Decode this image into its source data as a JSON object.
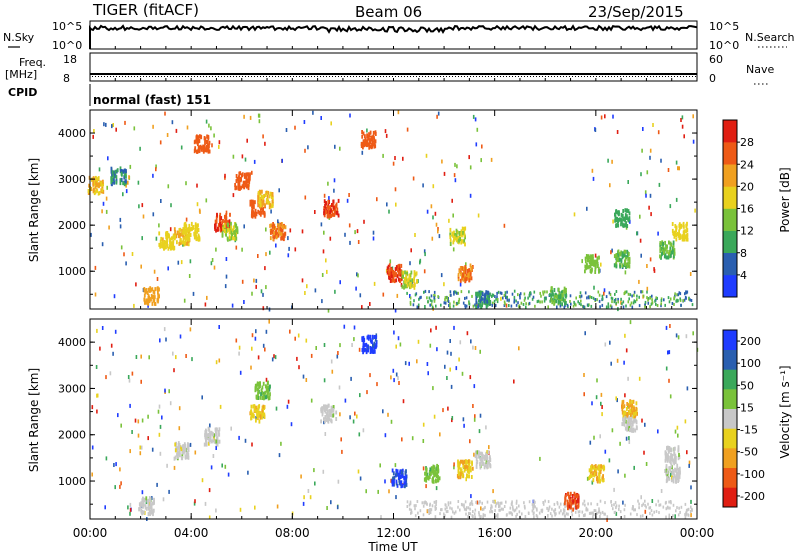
{
  "header": {
    "radar": "TIGER (fitACF)",
    "beam": "Beam 06",
    "date": "23/Sep/2015"
  },
  "top_panels": {
    "nsky_label": "N.Sky",
    "nsearch_label": "N.Search",
    "nsky_ticks": [
      "10^5",
      "10^0"
    ],
    "nsearch_ticks": [
      "10^5",
      "10^0"
    ],
    "freq_label": "Freq.",
    "freq_unit": "[MHz]",
    "freq_ticks": [
      "18",
      "8"
    ],
    "nave_label": "Nave",
    "nave_ticks": [
      "60",
      "0"
    ],
    "cpid_label": "CPID",
    "cpid_text": "normal (fast) 151"
  },
  "chart_data": [
    {
      "type": "heatmap",
      "name": "power",
      "ylabel": "Slant Range [km]",
      "ylim": [
        180,
        4500
      ],
      "yticks": [
        "4000",
        "3000",
        "2000",
        "1000"
      ],
      "ytick_values": [
        4000,
        3000,
        2000,
        1000
      ],
      "colorbar_label": "Power [dB]",
      "colorbar_ticks": [
        "28",
        "24",
        "20",
        "16",
        "12",
        "8",
        "4"
      ],
      "colorbar_range": [
        0,
        32
      ],
      "colors": [
        "#1f3cff",
        "#2a5fb0",
        "#3aa85a",
        "#7ac23a",
        "#e8d11e",
        "#f0a020",
        "#ee5a16",
        "#e01e12"
      ],
      "patches": [
        {
          "t": 0.2,
          "r": 2900,
          "v": 20
        },
        {
          "t": 1.1,
          "r": 3100,
          "v": 8
        },
        {
          "t": 2.4,
          "r": 500,
          "v": 22
        },
        {
          "t": 3.0,
          "r": 1700,
          "v": 18
        },
        {
          "t": 3.6,
          "r": 1800,
          "v": 20
        },
        {
          "t": 4.0,
          "r": 1900,
          "v": 18
        },
        {
          "t": 4.4,
          "r": 3800,
          "v": 26
        },
        {
          "t": 5.2,
          "r": 2100,
          "v": 28
        },
        {
          "t": 5.5,
          "r": 1900,
          "v": 16
        },
        {
          "t": 6.0,
          "r": 3000,
          "v": 26
        },
        {
          "t": 6.6,
          "r": 2400,
          "v": 26
        },
        {
          "t": 6.9,
          "r": 2600,
          "v": 20
        },
        {
          "t": 7.4,
          "r": 1900,
          "v": 24
        },
        {
          "t": 9.5,
          "r": 2400,
          "v": 28
        },
        {
          "t": 11.0,
          "r": 3900,
          "v": 26
        },
        {
          "t": 12.0,
          "r": 1000,
          "v": 28
        },
        {
          "t": 12.6,
          "r": 850,
          "v": 16
        },
        {
          "t": 14.8,
          "r": 1000,
          "v": 24
        },
        {
          "t": 14.5,
          "r": 1800,
          "v": 16
        },
        {
          "t": 15.5,
          "r": 420,
          "v": 8
        },
        {
          "t": 18.5,
          "r": 500,
          "v": 12
        },
        {
          "t": 19.8,
          "r": 1200,
          "v": 14
        },
        {
          "t": 21.0,
          "r": 1300,
          "v": 12
        },
        {
          "t": 21.0,
          "r": 2200,
          "v": 10
        },
        {
          "t": 22.8,
          "r": 1500,
          "v": 12
        },
        {
          "t": 23.3,
          "r": 1900,
          "v": 18
        }
      ]
    },
    {
      "type": "heatmap",
      "name": "velocity",
      "xlabel": "Time UT",
      "ylabel": "Slant Range [km]",
      "xlim": [
        0,
        24
      ],
      "xticks": [
        "00:00",
        "04:00",
        "08:00",
        "12:00",
        "16:00",
        "20:00",
        "00:00"
      ],
      "xtick_values": [
        0,
        4,
        8,
        12,
        16,
        20,
        24
      ],
      "ylim": [
        180,
        4500
      ],
      "yticks": [
        "4000",
        "3000",
        "2000",
        "1000"
      ],
      "ytick_values": [
        4000,
        3000,
        2000,
        1000
      ],
      "colorbar_label": "Velocity [m s⁻¹]",
      "colorbar_ticks": [
        "200",
        "100",
        "50",
        "15",
        "-15",
        "-50",
        "-100",
        "-200"
      ],
      "colorbar_range": [
        -250,
        250
      ],
      "colors": [
        "#e01e12",
        "#ee5a16",
        "#f0a020",
        "#e8d11e",
        "#c8c8c8",
        "#7ac23a",
        "#3aa85a",
        "#2a5fb0",
        "#1f3cff"
      ],
      "patches": [
        {
          "t": 2.2,
          "r": 500,
          "v": 0
        },
        {
          "t": 3.6,
          "r": 1700,
          "v": 0
        },
        {
          "t": 4.8,
          "r": 2000,
          "v": 0
        },
        {
          "t": 6.6,
          "r": 2500,
          "v": -60
        },
        {
          "t": 6.8,
          "r": 3000,
          "v": 60
        },
        {
          "t": 9.4,
          "r": 2500,
          "v": 0
        },
        {
          "t": 11.0,
          "r": 4000,
          "v": 220
        },
        {
          "t": 12.2,
          "r": 1100,
          "v": 200
        },
        {
          "t": 13.5,
          "r": 1200,
          "v": 60
        },
        {
          "t": 14.8,
          "r": 1300,
          "v": -80
        },
        {
          "t": 15.5,
          "r": 1500,
          "v": 0
        },
        {
          "t": 19.0,
          "r": 600,
          "v": -180
        },
        {
          "t": 20.0,
          "r": 1200,
          "v": -70
        },
        {
          "t": 21.3,
          "r": 2300,
          "v": 0
        },
        {
          "t": 21.3,
          "r": 2600,
          "v": -90
        },
        {
          "t": 23.0,
          "r": 1600,
          "v": 0
        },
        {
          "t": 23.0,
          "r": 1200,
          "v": 0
        }
      ]
    }
  ]
}
